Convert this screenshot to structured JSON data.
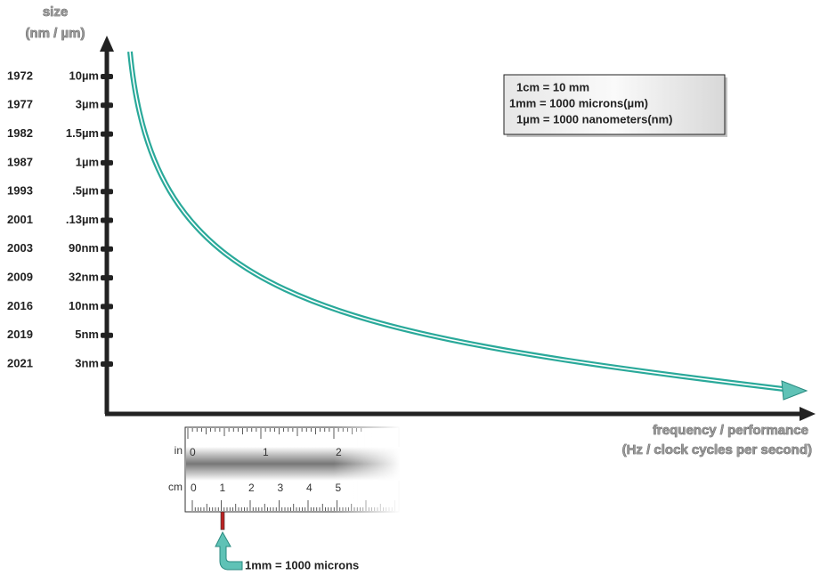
{
  "axes": {
    "y_title": [
      "size",
      "(nm / µm)"
    ],
    "x_title": [
      "frequency / performance",
      "(Hz / clock cycles per second)"
    ]
  },
  "ticks": [
    {
      "year": "1972",
      "size": "10µm"
    },
    {
      "year": "1977",
      "size": "3µm"
    },
    {
      "year": "1982",
      "size": "1.5µm"
    },
    {
      "year": "1987",
      "size": "1µm"
    },
    {
      "year": "1993",
      "size": ".5µm"
    },
    {
      "year": "2001",
      "size": ".13µm"
    },
    {
      "year": "2003",
      "size": "90nm"
    },
    {
      "year": "2009",
      "size": "32nm"
    },
    {
      "year": "2016",
      "size": "10nm"
    },
    {
      "year": "2019",
      "size": "5nm"
    },
    {
      "year": "2021",
      "size": "3nm"
    }
  ],
  "note": [
    "1cm = 10 mm",
    "1mm = 1000 microns(µm)",
    "1µm = 1000 nanometers(nm)"
  ],
  "ruler": {
    "in_label": "in",
    "in_numbers": [
      "0",
      "1",
      "2"
    ],
    "cm_label": "cm",
    "cm_numbers": [
      "0",
      "1",
      "2",
      "3",
      "4",
      "5"
    ]
  },
  "callout": "1mm = 1000 microns"
}
